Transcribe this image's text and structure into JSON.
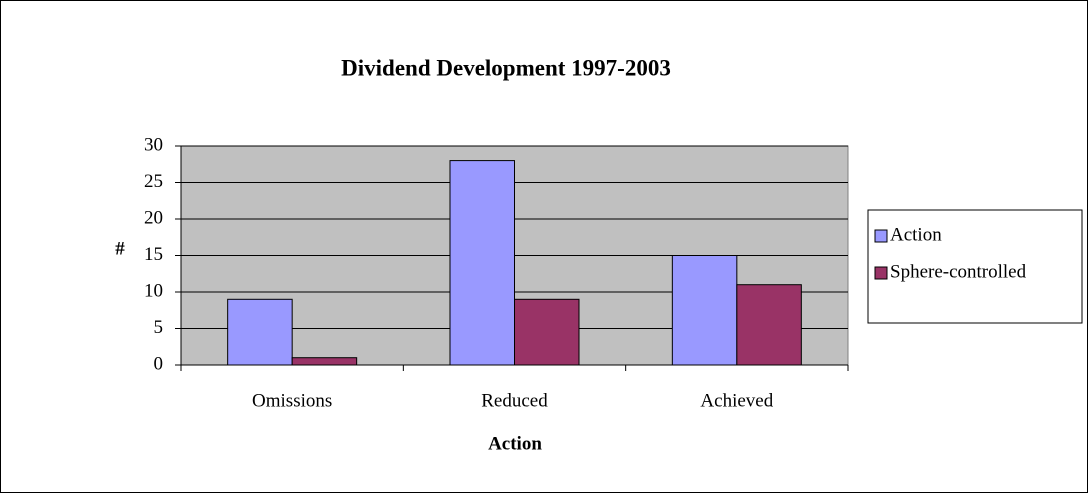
{
  "chart_data": {
    "type": "bar",
    "title": "Dividend Development 1997-2003",
    "x_label": "Action",
    "y_label": "#",
    "categories": [
      "Omissions",
      "Reduced",
      "Achieved"
    ],
    "series": [
      {
        "name": "Action",
        "color": "#9999ff",
        "values": [
          9,
          28,
          15
        ]
      },
      {
        "name": "Sphere-controlled",
        "color": "#993366",
        "values": [
          1,
          9,
          11
        ]
      }
    ],
    "ylim": [
      0,
      30
    ],
    "yticks": [
      0,
      5,
      10,
      15,
      20,
      25,
      30
    ],
    "grid": true,
    "legend": "right",
    "plot_background": "#c0c0c0"
  }
}
